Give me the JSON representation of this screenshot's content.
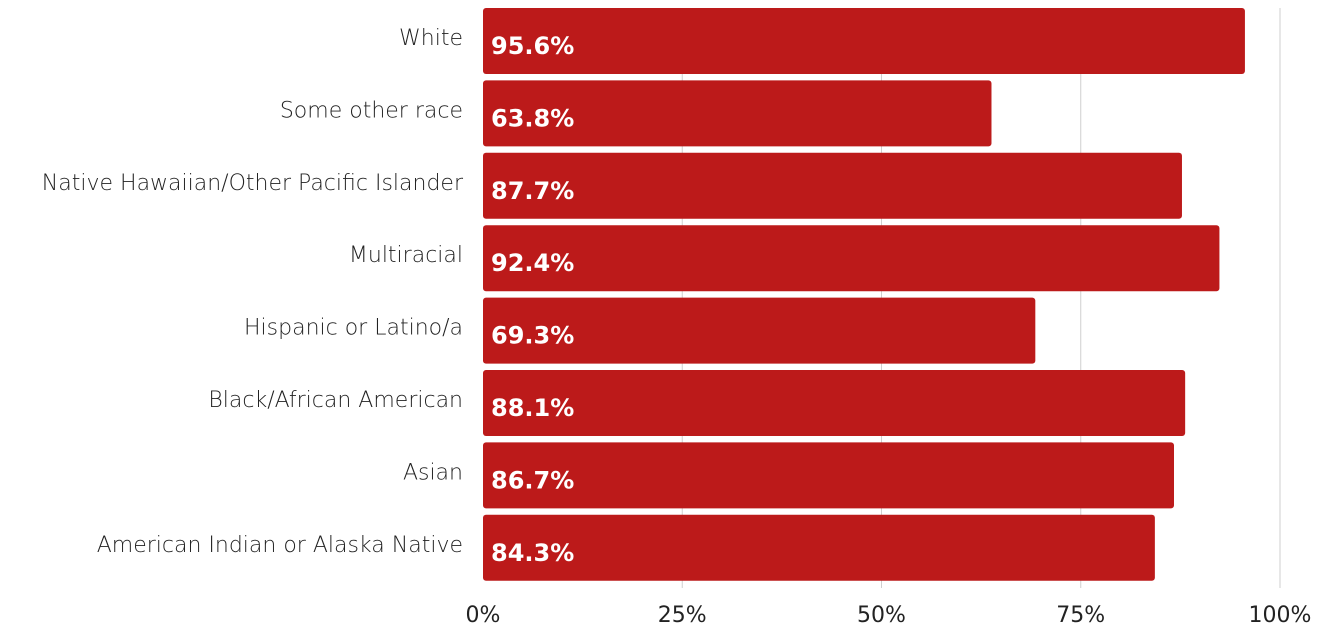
{
  "chart_data": {
    "type": "bar",
    "orientation": "horizontal",
    "categories": [
      "White",
      "Some other race",
      "Native Hawaiian/Other Pacific Islander",
      "Multiracial",
      "Hispanic or Latino/a",
      "Black/African American",
      "Asian",
      "American Indian or Alaska Native"
    ],
    "values": [
      95.6,
      63.8,
      87.7,
      92.4,
      69.3,
      88.1,
      86.7,
      84.3
    ],
    "value_labels": [
      "95.6%",
      "63.8%",
      "87.7%",
      "92.4%",
      "69.3%",
      "88.1%",
      "86.7%",
      "84.3%"
    ],
    "xlim": [
      0,
      100
    ],
    "x_ticks": [
      0,
      25,
      50,
      75,
      100
    ],
    "x_tick_labels": [
      "0%",
      "25%",
      "50%",
      "75%",
      "100%"
    ],
    "grid": true,
    "bar_color": "#bc1a1a",
    "title": "",
    "xlabel": "",
    "ylabel": ""
  }
}
